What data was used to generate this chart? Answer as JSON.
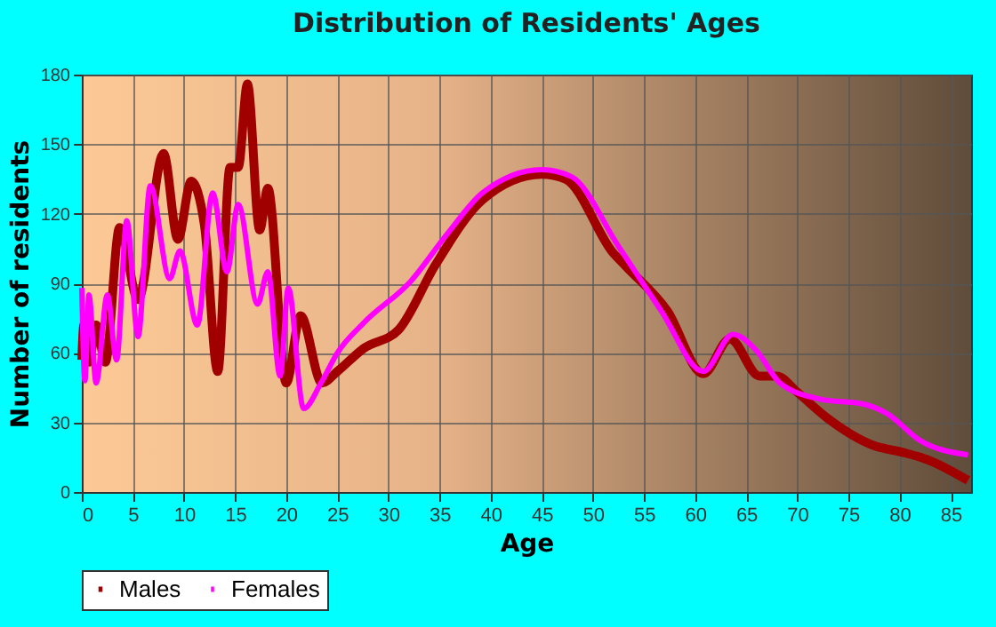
{
  "chart_data": {
    "type": "line",
    "title": "Distribution of Residents' Ages",
    "xlabel": "Age",
    "ylabel": "Number of residents",
    "xlim": [
      0,
      87
    ],
    "xticks": [
      0,
      5,
      10,
      15,
      20,
      25,
      30,
      35,
      40,
      45,
      50,
      55,
      60,
      65,
      70,
      75,
      80,
      85
    ],
    "ylim": [
      0,
      180
    ],
    "yticks": [
      0,
      30,
      60,
      90,
      120,
      150,
      180
    ],
    "grid": true,
    "legend": "bottom",
    "series": [
      {
        "name": "Males",
        "color": "#a00000",
        "x": [
          0,
          0.2,
          0.7,
          1.4,
          2.3,
          3.7,
          5.5,
          8,
          9.4,
          10.7,
          12,
          13.3,
          14.5,
          15.3,
          16.2,
          17.4,
          18.2,
          20,
          21.4,
          23.5,
          25,
          27.6,
          31,
          34.6,
          39.2,
          45,
          47.3,
          52,
          53.3,
          57.3,
          60.8,
          63.4,
          66.3,
          68,
          70,
          72.9,
          77.5,
          80.4,
          82.7,
          86.7
        ],
        "values": [
          57,
          72,
          56,
          72,
          56,
          114,
          83,
          146,
          109,
          134,
          115,
          52,
          140,
          140,
          176,
          113,
          131,
          47,
          76,
          47,
          52,
          62,
          70,
          98,
          126,
          137,
          135,
          103,
          97,
          78,
          51,
          66,
          50,
          50,
          43,
          32,
          20,
          17,
          14,
          5
        ]
      },
      {
        "name": "Females",
        "color": "#ff00ff",
        "x": [
          0,
          0.3,
          0.7,
          1.4,
          2.5,
          3.4,
          4.4,
          5.5,
          6.7,
          8.6,
          9.6,
          11.3,
          12.8,
          14.2,
          15.3,
          17.2,
          18.2,
          19.4,
          20.2,
          21.7,
          23.4,
          25,
          27.6,
          32.2,
          35.7,
          39.2,
          45,
          47.9,
          52.5,
          56.7,
          60.8,
          63.7,
          66,
          68.3,
          72.3,
          76.4,
          78.7,
          82.1,
          86.7
        ],
        "values": [
          88,
          48,
          85,
          47,
          85,
          57,
          117,
          67,
          132,
          92,
          104,
          72,
          129,
          95,
          124,
          81,
          95,
          50,
          88,
          36,
          47,
          60,
          73,
          91,
          111,
          129,
          139,
          136,
          106,
          78,
          52,
          68,
          61,
          47,
          40,
          38,
          34,
          22,
          16
        ]
      }
    ]
  }
}
